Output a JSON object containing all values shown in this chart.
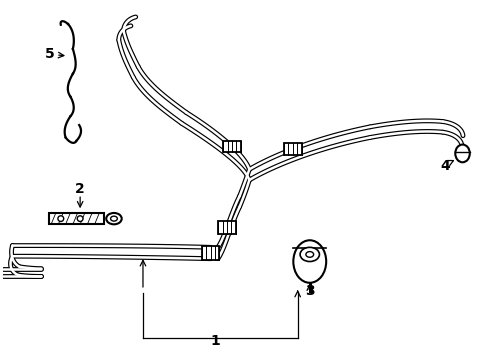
{
  "bg_color": "#ffffff",
  "line_color": "#000000",
  "label_fontsize": 10,
  "figsize": [
    4.89,
    3.6
  ],
  "dpi": 100,
  "outer_lw": 3.5,
  "inner_lw": 1.8
}
